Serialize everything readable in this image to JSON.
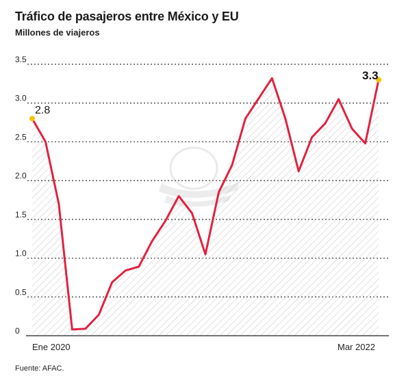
{
  "chart_data": {
    "type": "area",
    "title": "Tráfico de pasajeros entre México y EU",
    "subtitle": "Millones de viajeros",
    "source": "Fuente: AFAC.",
    "ylim": [
      0,
      3.5
    ],
    "yticks": [
      "0",
      "0.5",
      "1.0",
      "1.5",
      "2.0",
      "2.5",
      "3.0",
      "3.5"
    ],
    "x_labels": [
      "Ene 2020",
      "Mar 2022"
    ],
    "values": [
      2.8,
      2.5,
      1.7,
      0.08,
      0.09,
      0.27,
      0.69,
      0.84,
      0.89,
      1.22,
      1.48,
      1.8,
      1.58,
      1.05,
      1.85,
      2.2,
      2.8,
      3.06,
      3.32,
      2.8,
      2.12,
      2.56,
      2.74,
      3.05,
      2.67,
      2.48,
      3.3
    ],
    "annotations": {
      "start": "2.8",
      "end": "3.3"
    },
    "colors": {
      "line": "#e0223f",
      "marker": "#f5c400",
      "grid": "#333333",
      "hatch": "#bdbdbd"
    }
  }
}
